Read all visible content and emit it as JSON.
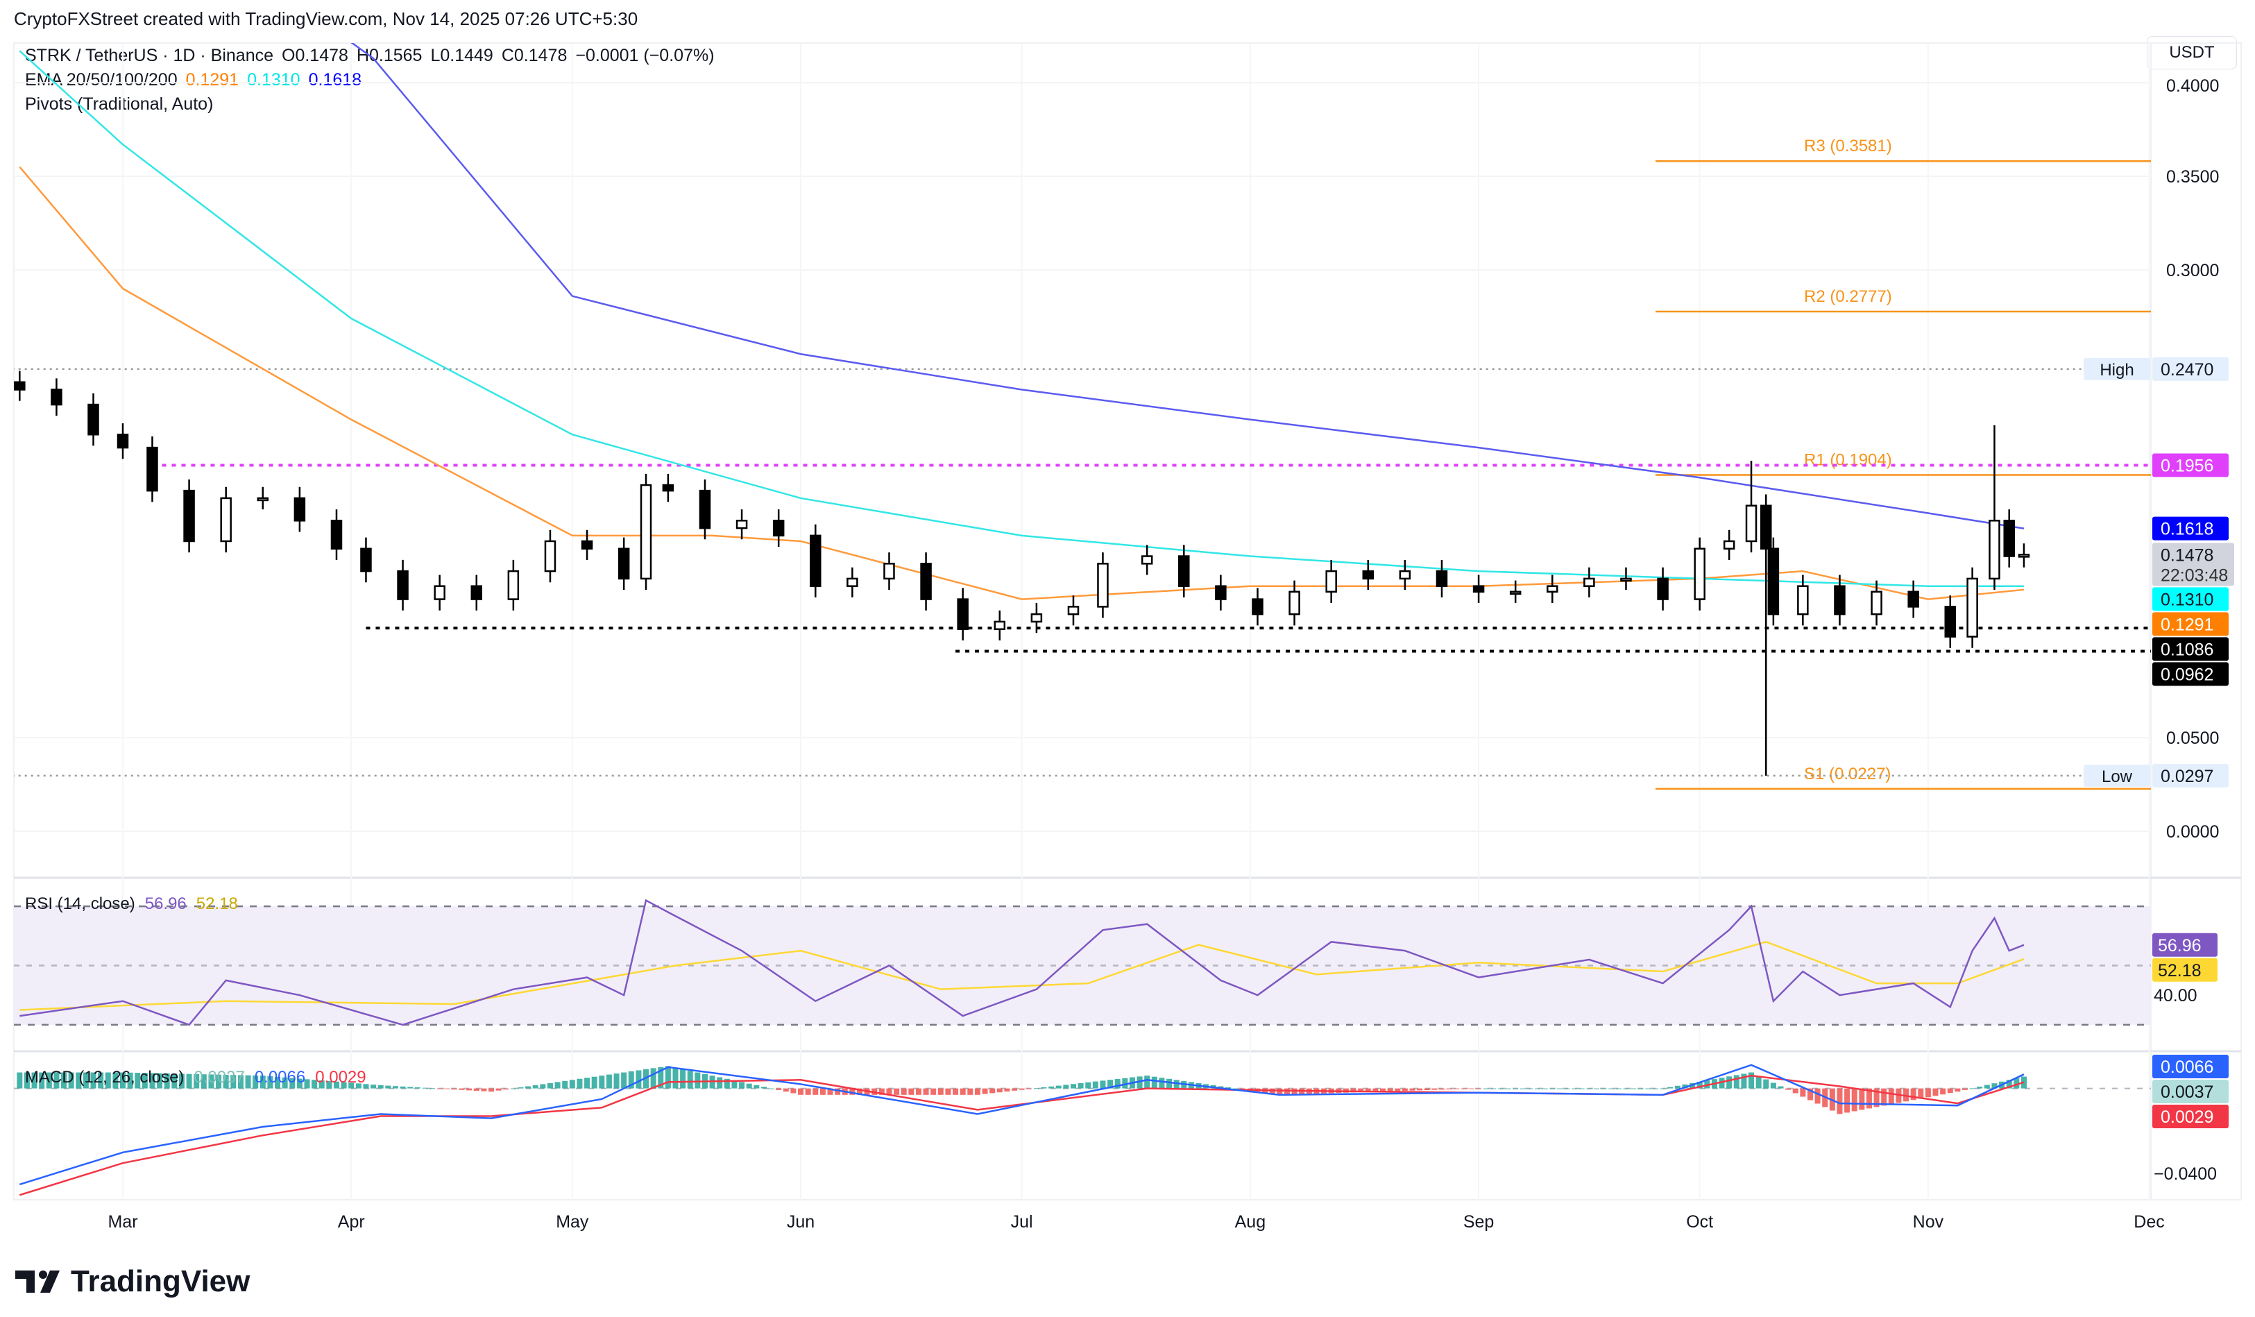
{
  "credit": "CryptoFXStreet created with TradingView.com, Nov 14, 2025 07:26 UTC+5:30",
  "legend": {
    "symbol": "STRK / TetherUS · 1D · Binance",
    "open": "O0.1478",
    "high": "H0.1565",
    "low": "L0.1449",
    "close": "C0.1478",
    "change": "−0.0001 (−0.07%)",
    "ema_label": "EMA 20/50/100/200",
    "ema_values": [
      {
        "v": "0.1291",
        "color": "#ff8000"
      },
      {
        "v": "0.1310",
        "color": "#00e5e5"
      },
      {
        "v": "0.1618",
        "color": "#0000ff"
      }
    ],
    "pivots_label": "Pivots (Traditional, Auto)"
  },
  "currency": "USDT",
  "logo": "TradingView",
  "chart_data": {
    "type": "candlestick",
    "price_axis": {
      "ticks": [
        "0.4000",
        "0.3500",
        "0.3000",
        "0.0500",
        "0.0000"
      ],
      "tick_values": [
        0.4,
        0.35,
        0.3,
        0.05,
        0
      ],
      "range": [
        -0.03,
        0.43
      ]
    },
    "time_axis": [
      "Mar",
      "Apr",
      "May",
      "Jun",
      "Jul",
      "Aug",
      "Sep",
      "Oct",
      "Nov",
      "Dec"
    ],
    "time_axis_dates": [
      "2025-03-01",
      "2025-04-01",
      "2025-05-01",
      "2025-06-01",
      "2025-07-01",
      "2025-08-01",
      "2025-09-01",
      "2025-10-01",
      "2025-11-01",
      "2025-12-01"
    ],
    "closes": [
      [
        "2025-02-15",
        0.236
      ],
      [
        "2025-02-20",
        0.228
      ],
      [
        "2025-02-25",
        0.212
      ],
      [
        "2025-03-01",
        0.205
      ],
      [
        "2025-03-05",
        0.182
      ],
      [
        "2025-03-10",
        0.155
      ],
      [
        "2025-03-15",
        0.178
      ],
      [
        "2025-03-20",
        0.178
      ],
      [
        "2025-03-25",
        0.166
      ],
      [
        "2025-03-30",
        0.151
      ],
      [
        "2025-04-03",
        0.139
      ],
      [
        "2025-04-08",
        0.124
      ],
      [
        "2025-04-13",
        0.131
      ],
      [
        "2025-04-18",
        0.124
      ],
      [
        "2025-04-23",
        0.139
      ],
      [
        "2025-04-28",
        0.155
      ],
      [
        "2025-05-03",
        0.151
      ],
      [
        "2025-05-08",
        0.135
      ],
      [
        "2025-05-11",
        0.185
      ],
      [
        "2025-05-14",
        0.182
      ],
      [
        "2025-05-19",
        0.162
      ],
      [
        "2025-05-24",
        0.166
      ],
      [
        "2025-05-29",
        0.158
      ],
      [
        "2025-06-03",
        0.131
      ],
      [
        "2025-06-08",
        0.135
      ],
      [
        "2025-06-13",
        0.143
      ],
      [
        "2025-06-18",
        0.124
      ],
      [
        "2025-06-23",
        0.108
      ],
      [
        "2025-06-28",
        0.112
      ],
      [
        "2025-07-03",
        0.116
      ],
      [
        "2025-07-08",
        0.12
      ],
      [
        "2025-07-12",
        0.143
      ],
      [
        "2025-07-18",
        0.147
      ],
      [
        "2025-07-23",
        0.131
      ],
      [
        "2025-07-28",
        0.124
      ],
      [
        "2025-08-02",
        0.116
      ],
      [
        "2025-08-07",
        0.128
      ],
      [
        "2025-08-12",
        0.139
      ],
      [
        "2025-08-17",
        0.135
      ],
      [
        "2025-08-22",
        0.139
      ],
      [
        "2025-08-27",
        0.131
      ],
      [
        "2025-09-01",
        0.128
      ],
      [
        "2025-09-06",
        0.128
      ],
      [
        "2025-09-11",
        0.131
      ],
      [
        "2025-09-16",
        0.135
      ],
      [
        "2025-09-21",
        0.135
      ],
      [
        "2025-09-26",
        0.124
      ],
      [
        "2025-10-01",
        0.151
      ],
      [
        "2025-10-05",
        0.155
      ],
      [
        "2025-10-08",
        0.174
      ],
      [
        "2025-10-10",
        0.151
      ],
      [
        "2025-10-11",
        0.116
      ],
      [
        "2025-10-15",
        0.131
      ],
      [
        "2025-10-20",
        0.116
      ],
      [
        "2025-10-25",
        0.128
      ],
      [
        "2025-10-30",
        0.12
      ],
      [
        "2025-11-04",
        0.104
      ],
      [
        "2025-11-07",
        0.135
      ],
      [
        "2025-11-10",
        0.166
      ],
      [
        "2025-11-12",
        0.147
      ],
      [
        "2025-11-14",
        0.1478
      ]
    ],
    "wick_extremes": [
      {
        "date": "2025-10-10",
        "low": 0.0297
      },
      {
        "date": "2025-11-10",
        "high": 0.217
      },
      {
        "date": "2025-10-08",
        "high": 0.198
      }
    ],
    "ema": [
      {
        "name": "EMA 50",
        "color": "#ff9a3c",
        "points": [
          [
            "2025-02-15",
            0.355
          ],
          [
            "2025-03-01",
            0.29
          ],
          [
            "2025-04-01",
            0.22
          ],
          [
            "2025-05-01",
            0.158
          ],
          [
            "2025-05-20",
            0.158
          ],
          [
            "2025-06-01",
            0.155
          ],
          [
            "2025-07-01",
            0.124
          ],
          [
            "2025-08-01",
            0.131
          ],
          [
            "2025-09-01",
            0.131
          ],
          [
            "2025-10-01",
            0.135
          ],
          [
            "2025-10-15",
            0.139
          ],
          [
            "2025-11-01",
            0.124
          ],
          [
            "2025-11-14",
            0.1291
          ]
        ]
      },
      {
        "name": "EMA 100",
        "color": "#33e6e6",
        "points": [
          [
            "2025-02-15",
            0.417
          ],
          [
            "2025-03-01",
            0.367
          ],
          [
            "2025-04-01",
            0.274
          ],
          [
            "2025-05-01",
            0.212
          ],
          [
            "2025-06-01",
            0.178
          ],
          [
            "2025-07-01",
            0.158
          ],
          [
            "2025-08-01",
            0.147
          ],
          [
            "2025-09-01",
            0.139
          ],
          [
            "2025-10-01",
            0.135
          ],
          [
            "2025-11-01",
            0.131
          ],
          [
            "2025-11-14",
            0.131
          ]
        ]
      },
      {
        "name": "EMA 200",
        "color": "#5b5bf0",
        "points": [
          [
            "2025-03-15",
            0.47
          ],
          [
            "2025-04-04",
            0.413
          ],
          [
            "2025-05-01",
            0.286
          ],
          [
            "2025-06-01",
            0.255
          ],
          [
            "2025-07-01",
            0.236
          ],
          [
            "2025-08-01",
            0.22
          ],
          [
            "2025-09-01",
            0.205
          ],
          [
            "2025-10-01",
            0.189
          ],
          [
            "2025-11-01",
            0.17
          ],
          [
            "2025-11-14",
            0.1618
          ]
        ]
      }
    ],
    "levels": [
      {
        "label": "R3 (0.3581)",
        "value": 0.3581,
        "color": "#f7931a",
        "from": "2025-09-25",
        "style": "solid"
      },
      {
        "label": "R2 (0.2777)",
        "value": 0.2777,
        "color": "#f7931a",
        "from": "2025-09-25",
        "style": "solid"
      },
      {
        "label": "R1 (0.1904)",
        "value": 0.1904,
        "color": "#f7931a",
        "from": "2025-09-25",
        "style": "solid"
      },
      {
        "label": "S1 (0.0227)",
        "value": 0.0227,
        "color": "#f7931a",
        "from": "2025-09-25",
        "style": "solid"
      },
      {
        "label": "",
        "value": 0.1956,
        "color": "#e040fb",
        "from": "2025-03-05",
        "style": "dotted"
      },
      {
        "label": "",
        "value": 0.1086,
        "color": "#000000",
        "from": "2025-04-03",
        "style": "dotted"
      },
      {
        "label": "",
        "value": 0.0962,
        "color": "#000000",
        "from": "2025-06-22",
        "style": "dotted"
      },
      {
        "label": "High",
        "value": 0.247,
        "color": "#999999",
        "from": "2025-02-14",
        "style": "dotted"
      },
      {
        "label": "Low",
        "value": 0.0297,
        "color": "#999999",
        "from": "2025-02-14",
        "style": "dotted"
      }
    ],
    "price_tags": [
      {
        "text": "0.2470",
        "bg": "#e3effd",
        "fg": "#131722",
        "value": 0.247
      },
      {
        "text": "0.1956",
        "bg": "#e040fb",
        "fg": "#ffffff",
        "value": 0.1956
      },
      {
        "text": "0.1618",
        "bg": "#0000ff",
        "fg": "#ffffff",
        "value": 0.1618
      },
      {
        "text": "0.1478",
        "sub": "22:03:48",
        "bg": "#d1d4dc",
        "fg": "#131722",
        "value": 0.1478
      },
      {
        "text": "0.1310",
        "bg": "#00ffff",
        "fg": "#131722",
        "value": 0.131
      },
      {
        "text": "0.1291",
        "bg": "#ff8000",
        "fg": "#ffffff",
        "value": 0.1291
      },
      {
        "text": "0.1086",
        "bg": "#000000",
        "fg": "#ffffff",
        "value": 0.1086
      },
      {
        "text": "0.0962",
        "bg": "#000000",
        "fg": "#ffffff",
        "value": 0.0962
      },
      {
        "text": "0.0297",
        "bg": "#e3effd",
        "fg": "#131722",
        "value": 0.0297
      }
    ],
    "rsi": {
      "label": "RSI (14, close)",
      "value": "56.96",
      "ma_value": "52.18",
      "value_color": "#7e57c2",
      "ma_color": "#fdd835",
      "axis_tick": "40.00",
      "bands": [
        30,
        50,
        70
      ],
      "points": [
        [
          "2025-02-15",
          33
        ],
        [
          "2025-03-01",
          38
        ],
        [
          "2025-03-10",
          30
        ],
        [
          "2025-03-15",
          45
        ],
        [
          "2025-03-25",
          40
        ],
        [
          "2025-04-08",
          30
        ],
        [
          "2025-04-23",
          42
        ],
        [
          "2025-05-03",
          46
        ],
        [
          "2025-05-08",
          40
        ],
        [
          "2025-05-11",
          72
        ],
        [
          "2025-05-14",
          68
        ],
        [
          "2025-05-24",
          55
        ],
        [
          "2025-06-03",
          38
        ],
        [
          "2025-06-13",
          50
        ],
        [
          "2025-06-23",
          33
        ],
        [
          "2025-07-03",
          42
        ],
        [
          "2025-07-12",
          62
        ],
        [
          "2025-07-18",
          64
        ],
        [
          "2025-07-28",
          45
        ],
        [
          "2025-08-02",
          40
        ],
        [
          "2025-08-12",
          58
        ],
        [
          "2025-08-22",
          55
        ],
        [
          "2025-09-01",
          46
        ],
        [
          "2025-09-16",
          52
        ],
        [
          "2025-09-26",
          44
        ],
        [
          "2025-10-05",
          62
        ],
        [
          "2025-10-08",
          70
        ],
        [
          "2025-10-11",
          38
        ],
        [
          "2025-10-15",
          48
        ],
        [
          "2025-10-20",
          40
        ],
        [
          "2025-10-30",
          44
        ],
        [
          "2025-11-04",
          36
        ],
        [
          "2025-11-07",
          55
        ],
        [
          "2025-11-10",
          66
        ],
        [
          "2025-11-12",
          55
        ],
        [
          "2025-11-14",
          56.96
        ]
      ],
      "ma_points": [
        [
          "2025-02-15",
          35
        ],
        [
          "2025-03-15",
          38
        ],
        [
          "2025-04-15",
          37
        ],
        [
          "2025-05-15",
          50
        ],
        [
          "2025-06-01",
          55
        ],
        [
          "2025-06-20",
          42
        ],
        [
          "2025-07-10",
          44
        ],
        [
          "2025-07-25",
          57
        ],
        [
          "2025-08-10",
          47
        ],
        [
          "2025-09-01",
          51
        ],
        [
          "2025-09-26",
          48
        ],
        [
          "2025-10-10",
          58
        ],
        [
          "2025-10-25",
          44
        ],
        [
          "2025-11-05",
          44
        ],
        [
          "2025-11-14",
          52.18
        ]
      ]
    },
    "macd": {
      "label": "MACD (12, 26, close)",
      "hist": "0.0037",
      "macd": "0.0066",
      "signal": "0.0029",
      "hist_color": "#b2dfdb",
      "macd_color": "#2962ff",
      "signal_color": "#f23645",
      "axis_tick": "−0.0400",
      "macd_points": [
        [
          "2025-02-15",
          -0.045
        ],
        [
          "2025-03-01",
          -0.03
        ],
        [
          "2025-03-20",
          -0.018
        ],
        [
          "2025-04-05",
          -0.012
        ],
        [
          "2025-04-20",
          -0.014
        ],
        [
          "2025-05-05",
          -0.005
        ],
        [
          "2025-05-14",
          0.01
        ],
        [
          "2025-06-01",
          0.002
        ],
        [
          "2025-06-25",
          -0.012
        ],
        [
          "2025-07-18",
          0.004
        ],
        [
          "2025-08-05",
          -0.003
        ],
        [
          "2025-09-01",
          -0.002
        ],
        [
          "2025-09-26",
          -0.003
        ],
        [
          "2025-10-08",
          0.011
        ],
        [
          "2025-10-20",
          -0.007
        ],
        [
          "2025-11-05",
          -0.008
        ],
        [
          "2025-11-14",
          0.0066
        ]
      ],
      "signal_points": [
        [
          "2025-02-15",
          -0.05
        ],
        [
          "2025-03-01",
          -0.035
        ],
        [
          "2025-03-20",
          -0.022
        ],
        [
          "2025-04-05",
          -0.013
        ],
        [
          "2025-04-20",
          -0.013
        ],
        [
          "2025-05-05",
          -0.009
        ],
        [
          "2025-05-14",
          0.003
        ],
        [
          "2025-06-01",
          0.004
        ],
        [
          "2025-06-25",
          -0.01
        ],
        [
          "2025-07-18",
          0.0
        ],
        [
          "2025-08-05",
          -0.001
        ],
        [
          "2025-09-01",
          -0.002
        ],
        [
          "2025-09-26",
          -0.003
        ],
        [
          "2025-10-08",
          0.006
        ],
        [
          "2025-10-20",
          0.001
        ],
        [
          "2025-11-05",
          -0.007
        ],
        [
          "2025-11-14",
          0.0029
        ]
      ]
    }
  }
}
